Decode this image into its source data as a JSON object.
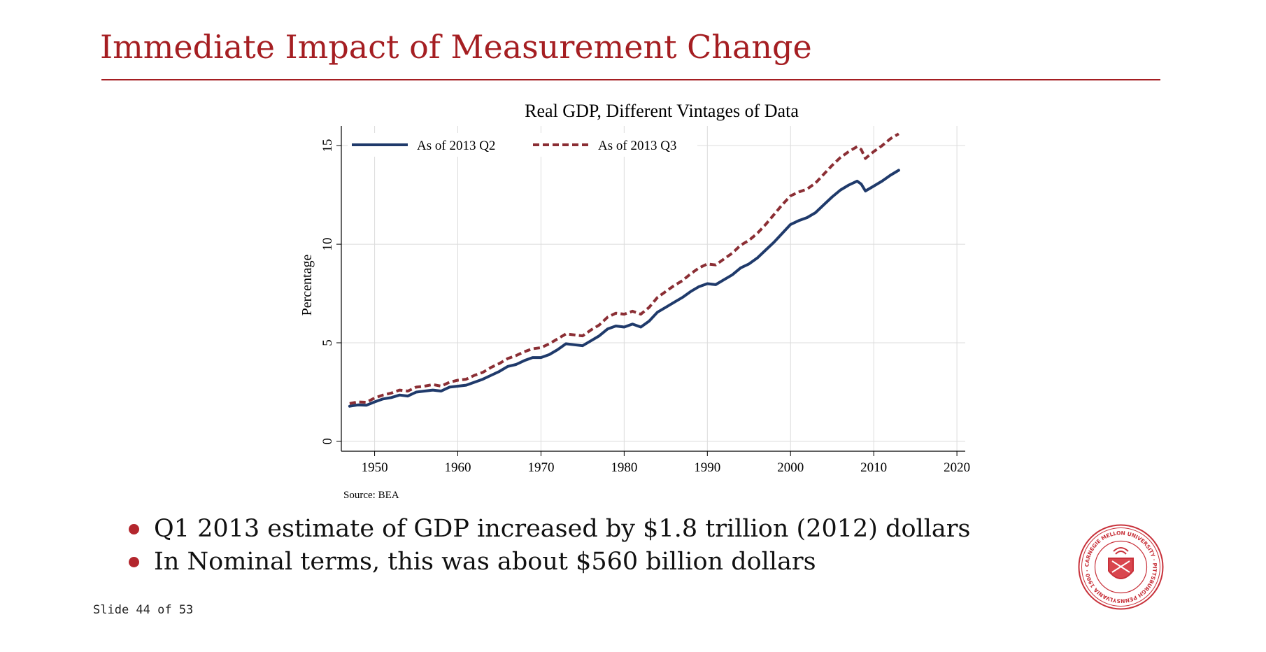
{
  "slide": {
    "title": "Immediate Impact of Measurement Change",
    "bullets": [
      "Q1 2013 estimate of GDP increased by $1.8 trillion (2012) dollars",
      "In Nominal terms, this was about $560 billion dollars"
    ],
    "counter": "Slide 44 of 53",
    "logo_text": "CARNEGIE MELLON UNIVERSITY · PITTSBURGH PENNSYLVANIA 1900",
    "accent_color": "#a51e22"
  },
  "chart_data": {
    "type": "line",
    "title": "Real GDP, Different Vintages of Data",
    "xlabel": "",
    "ylabel": "Percentage",
    "source": "Source: BEA",
    "xlim": [
      1946,
      2021
    ],
    "ylim": [
      -0.5,
      16
    ],
    "xticks": [
      1950,
      1960,
      1970,
      1980,
      1990,
      2000,
      2010,
      2020
    ],
    "yticks": [
      0,
      5,
      10,
      15
    ],
    "grid": true,
    "legend_position": "top",
    "series": [
      {
        "name": "As of 2013 Q2",
        "color": "#1f3a6b",
        "style": "solid",
        "points": [
          [
            1947,
            1.78
          ],
          [
            1948,
            1.85
          ],
          [
            1949,
            1.83
          ],
          [
            1950,
            2.0
          ],
          [
            1951,
            2.15
          ],
          [
            1952,
            2.22
          ],
          [
            1953,
            2.35
          ],
          [
            1954,
            2.3
          ],
          [
            1955,
            2.5
          ],
          [
            1956,
            2.55
          ],
          [
            1957,
            2.6
          ],
          [
            1958,
            2.55
          ],
          [
            1959,
            2.75
          ],
          [
            1960,
            2.8
          ],
          [
            1961,
            2.85
          ],
          [
            1962,
            3.0
          ],
          [
            1963,
            3.15
          ],
          [
            1964,
            3.35
          ],
          [
            1965,
            3.55
          ],
          [
            1966,
            3.8
          ],
          [
            1967,
            3.9
          ],
          [
            1968,
            4.1
          ],
          [
            1969,
            4.25
          ],
          [
            1970,
            4.25
          ],
          [
            1971,
            4.4
          ],
          [
            1972,
            4.65
          ],
          [
            1973,
            4.95
          ],
          [
            1974,
            4.9
          ],
          [
            1975,
            4.85
          ],
          [
            1976,
            5.1
          ],
          [
            1977,
            5.35
          ],
          [
            1978,
            5.7
          ],
          [
            1979,
            5.85
          ],
          [
            1980,
            5.8
          ],
          [
            1981,
            5.95
          ],
          [
            1982,
            5.8
          ],
          [
            1983,
            6.1
          ],
          [
            1984,
            6.55
          ],
          [
            1985,
            6.8
          ],
          [
            1986,
            7.05
          ],
          [
            1987,
            7.3
          ],
          [
            1988,
            7.6
          ],
          [
            1989,
            7.85
          ],
          [
            1990,
            8.0
          ],
          [
            1991,
            7.95
          ],
          [
            1992,
            8.2
          ],
          [
            1993,
            8.45
          ],
          [
            1994,
            8.8
          ],
          [
            1995,
            9.0
          ],
          [
            1996,
            9.3
          ],
          [
            1997,
            9.7
          ],
          [
            1998,
            10.1
          ],
          [
            1999,
            10.55
          ],
          [
            2000,
            11.0
          ],
          [
            2001,
            11.2
          ],
          [
            2002,
            11.35
          ],
          [
            2003,
            11.6
          ],
          [
            2004,
            12.0
          ],
          [
            2005,
            12.4
          ],
          [
            2006,
            12.75
          ],
          [
            2007,
            13.0
          ],
          [
            2008,
            13.2
          ],
          [
            2008.5,
            13.05
          ],
          [
            2009,
            12.7
          ],
          [
            2010,
            12.95
          ],
          [
            2011,
            13.2
          ],
          [
            2012,
            13.5
          ],
          [
            2013,
            13.75
          ]
        ]
      },
      {
        "name": "As of 2013 Q3",
        "color": "#8b2e34",
        "style": "dashed",
        "points": [
          [
            1947,
            1.92
          ],
          [
            1948,
            2.0
          ],
          [
            1949,
            1.98
          ],
          [
            1950,
            2.2
          ],
          [
            1951,
            2.35
          ],
          [
            1952,
            2.45
          ],
          [
            1953,
            2.6
          ],
          [
            1954,
            2.55
          ],
          [
            1955,
            2.75
          ],
          [
            1956,
            2.8
          ],
          [
            1957,
            2.88
          ],
          [
            1958,
            2.8
          ],
          [
            1959,
            3.0
          ],
          [
            1960,
            3.1
          ],
          [
            1961,
            3.15
          ],
          [
            1962,
            3.35
          ],
          [
            1963,
            3.5
          ],
          [
            1964,
            3.75
          ],
          [
            1965,
            3.95
          ],
          [
            1966,
            4.2
          ],
          [
            1967,
            4.35
          ],
          [
            1968,
            4.55
          ],
          [
            1969,
            4.7
          ],
          [
            1970,
            4.75
          ],
          [
            1971,
            4.95
          ],
          [
            1972,
            5.2
          ],
          [
            1973,
            5.45
          ],
          [
            1974,
            5.4
          ],
          [
            1975,
            5.35
          ],
          [
            1976,
            5.65
          ],
          [
            1977,
            5.9
          ],
          [
            1978,
            6.3
          ],
          [
            1979,
            6.5
          ],
          [
            1980,
            6.45
          ],
          [
            1981,
            6.6
          ],
          [
            1982,
            6.45
          ],
          [
            1983,
            6.8
          ],
          [
            1984,
            7.3
          ],
          [
            1985,
            7.6
          ],
          [
            1986,
            7.9
          ],
          [
            1987,
            8.15
          ],
          [
            1988,
            8.5
          ],
          [
            1989,
            8.8
          ],
          [
            1990,
            9.0
          ],
          [
            1991,
            8.95
          ],
          [
            1992,
            9.25
          ],
          [
            1993,
            9.55
          ],
          [
            1994,
            9.95
          ],
          [
            1995,
            10.2
          ],
          [
            1996,
            10.55
          ],
          [
            1997,
            11.0
          ],
          [
            1998,
            11.5
          ],
          [
            1999,
            12.0
          ],
          [
            2000,
            12.45
          ],
          [
            2001,
            12.65
          ],
          [
            2002,
            12.8
          ],
          [
            2003,
            13.1
          ],
          [
            2004,
            13.55
          ],
          [
            2005,
            14.0
          ],
          [
            2006,
            14.4
          ],
          [
            2007,
            14.7
          ],
          [
            2008,
            14.95
          ],
          [
            2008.5,
            14.8
          ],
          [
            2009,
            14.35
          ],
          [
            2010,
            14.7
          ],
          [
            2011,
            15.0
          ],
          [
            2012,
            15.35
          ],
          [
            2013,
            15.6
          ]
        ]
      }
    ]
  }
}
